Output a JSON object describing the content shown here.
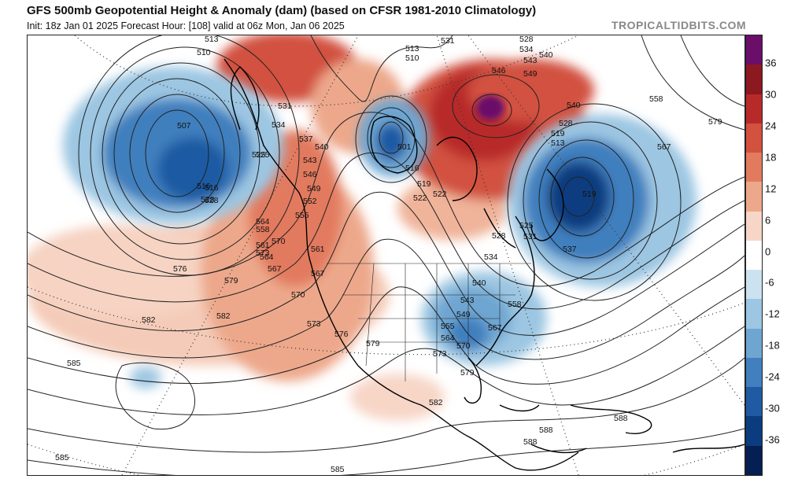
{
  "header": {
    "title": "GFS 500mb Geopotential Height & Anomaly (dam) (based on CFSR 1981-2010 Climatology)",
    "subtitle": "Init: 18z Jan 01 2025   Forecast Hour: [108]   valid at 06z Mon, Jan 06 2025",
    "brand": "TROPICALTIDBITS.COM"
  },
  "colorbar": {
    "ticks": [
      "36",
      "30",
      "24",
      "18",
      "12",
      "6",
      "0",
      "-6",
      "-12",
      "-18",
      "-24",
      "-30",
      "-36"
    ],
    "colors": [
      "#6a0e6a",
      "#8c1820",
      "#b82a2a",
      "#d2513f",
      "#e27a5e",
      "#eda88b",
      "#f7d6c7",
      "#ffffff",
      "#cce2f0",
      "#9cc6e2",
      "#6ea6d1",
      "#417fbe",
      "#1f5aa3",
      "#0c3c80",
      "#061f52"
    ]
  },
  "contour_labels": [
    "513",
    "510",
    "507",
    "516",
    "528",
    "525",
    "531",
    "534",
    "537",
    "540",
    "543",
    "546",
    "549",
    "552",
    "555",
    "558",
    "561",
    "564",
    "567",
    "570",
    "573",
    "576",
    "579",
    "582",
    "585",
    "588",
    "519",
    "522"
  ],
  "map": {
    "anomalies": [
      {
        "name": "gulf-of-alaska-trough",
        "value": -30
      },
      {
        "name": "hudson-bay-low",
        "value": -24
      },
      {
        "name": "north-atlantic-trough",
        "value": -36
      },
      {
        "name": "eastern-us-trough",
        "value": -24
      },
      {
        "name": "greenland-ridge",
        "value": 36
      },
      {
        "name": "western-north-america-ridge",
        "value": 18
      },
      {
        "name": "alaska-ridge",
        "value": 24
      },
      {
        "name": "subtropical-pacific-ridge",
        "value": 6
      }
    ]
  }
}
